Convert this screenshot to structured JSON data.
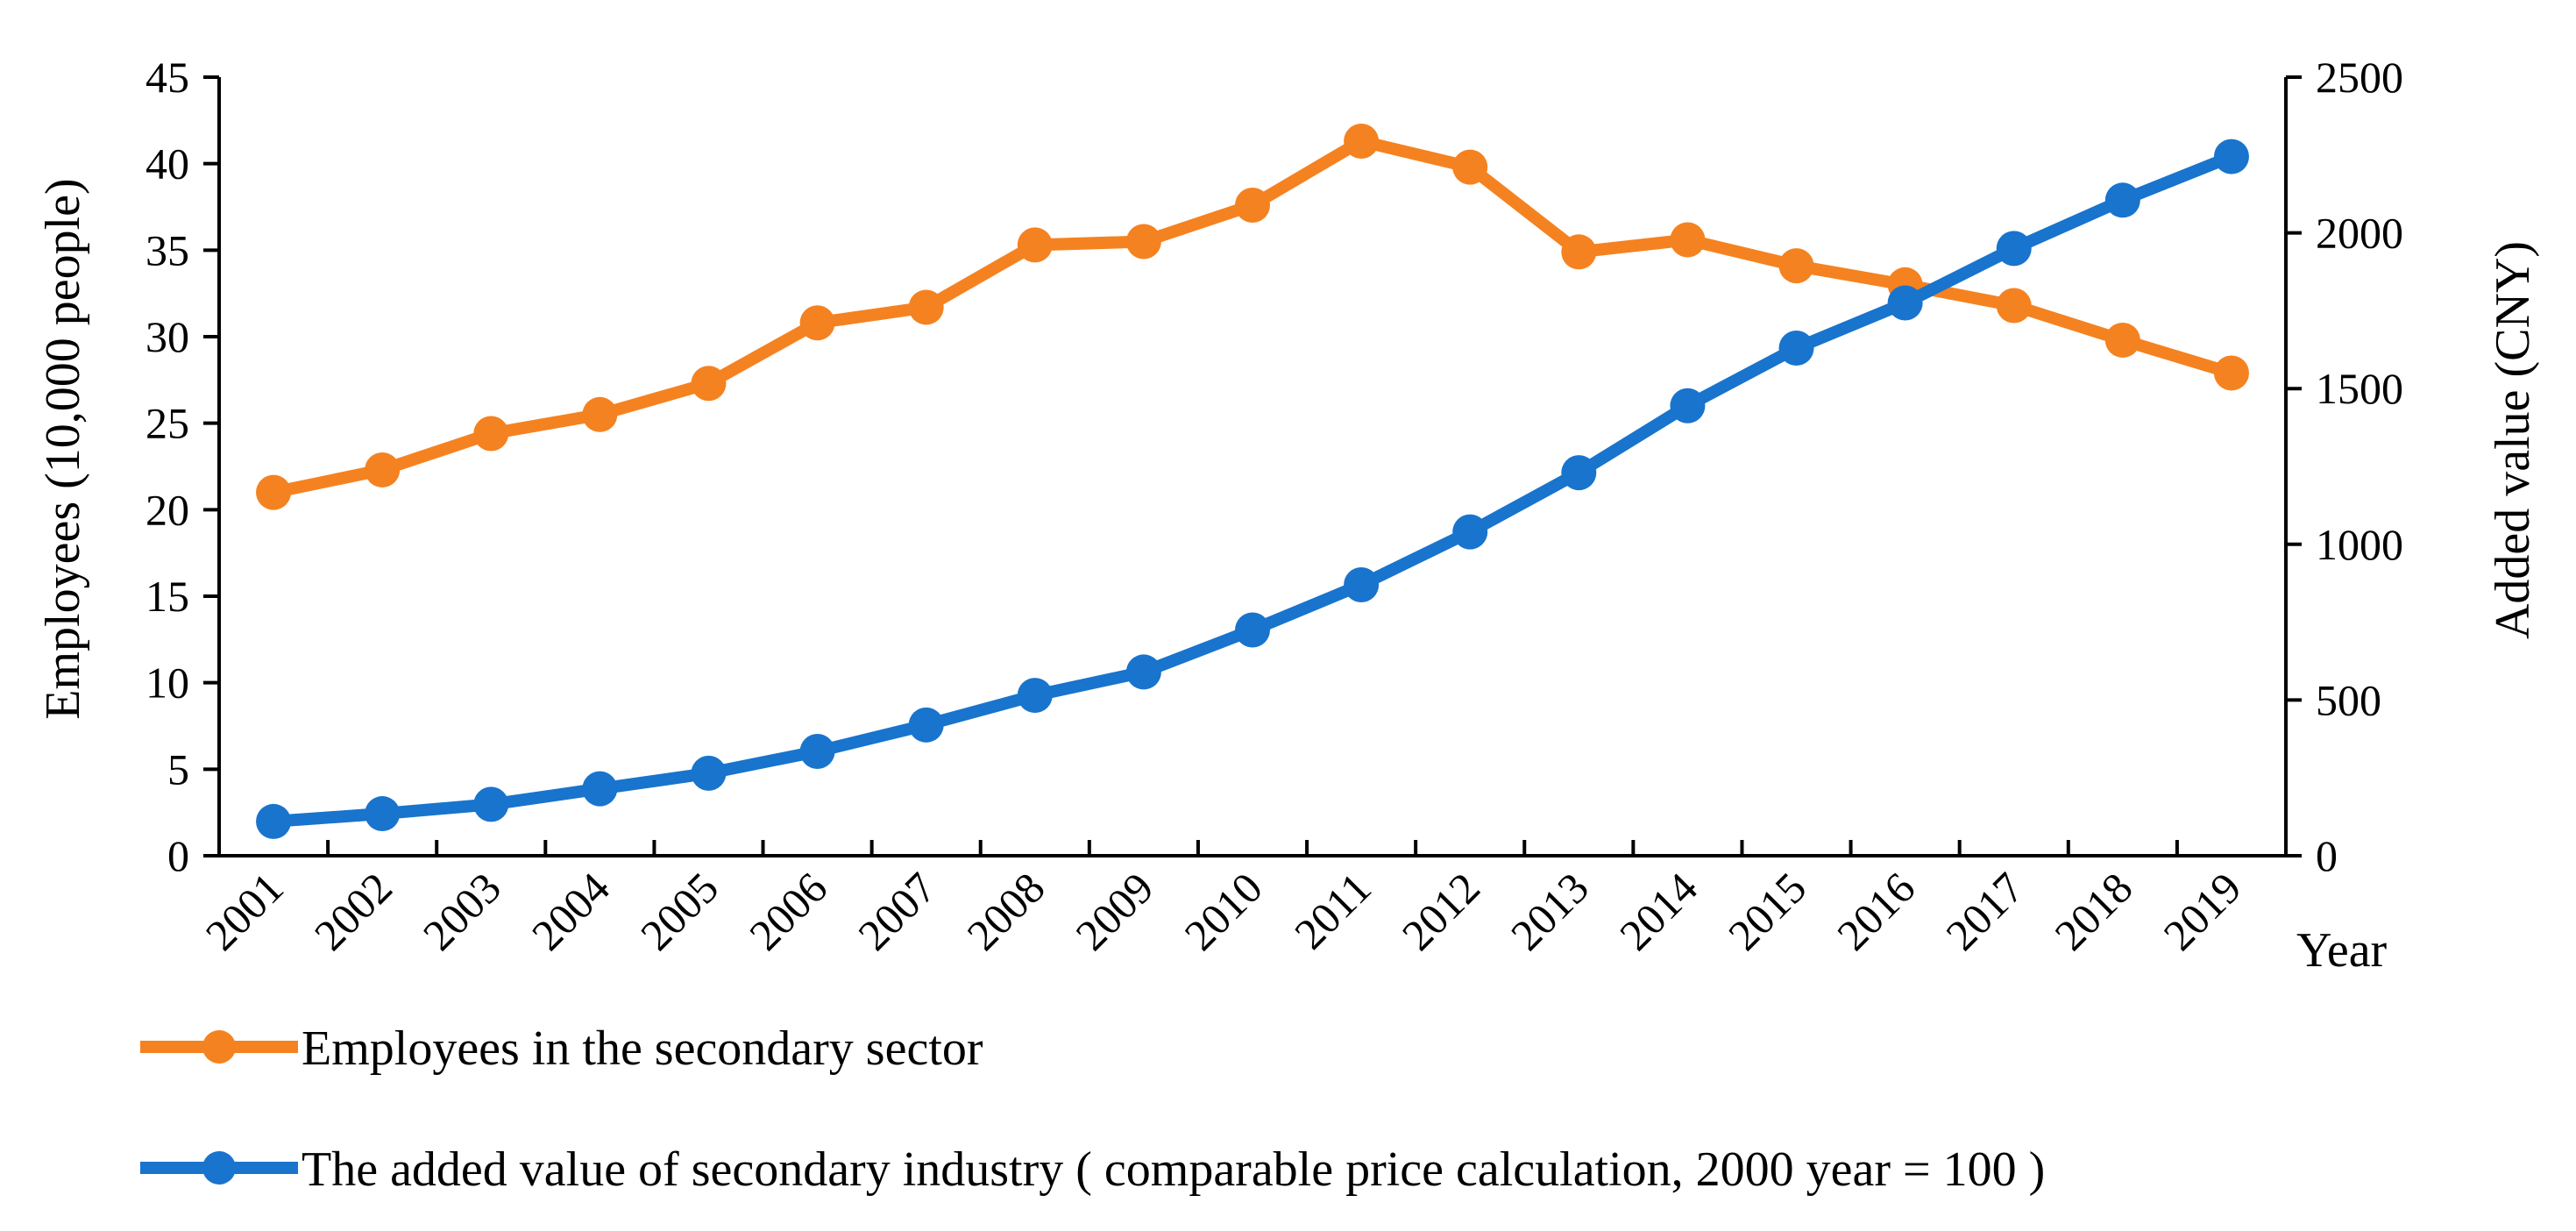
{
  "chart_data": {
    "type": "line",
    "categories": [
      "2001",
      "2002",
      "2003",
      "2004",
      "2005",
      "2006",
      "2007",
      "2008",
      "2009",
      "2010",
      "2011",
      "2012",
      "2013",
      "2014",
      "2015",
      "2016",
      "2017",
      "2018",
      "2019"
    ],
    "x_axis_extra_label": "Year",
    "y_left": {
      "label": "Employees (10,000 people)",
      "range": [
        0,
        45
      ],
      "ticks": [
        0,
        5,
        10,
        15,
        20,
        25,
        30,
        35,
        40,
        45
      ]
    },
    "y_right": {
      "label": "Added value (CNY)",
      "range": [
        0,
        2500
      ],
      "ticks": [
        0,
        500,
        1000,
        1500,
        2000,
        2500
      ]
    },
    "series": [
      {
        "name": "Employees in the secondary sector",
        "axis": "left",
        "color": "#F58220",
        "values": [
          21.0,
          22.3,
          24.4,
          25.5,
          27.3,
          30.8,
          31.7,
          35.3,
          35.5,
          37.6,
          41.3,
          39.8,
          34.9,
          35.6,
          34.1,
          33.0,
          31.8,
          29.8,
          27.9
        ]
      },
      {
        "name": "The added value of secondary industry ( comparable price calculation, 2000 year = 100 )",
        "axis": "right",
        "color": "#1874CD",
        "values": [
          110,
          135,
          165,
          215,
          265,
          335,
          420,
          515,
          590,
          725,
          870,
          1040,
          1230,
          1445,
          1630,
          1775,
          1950,
          2105,
          2245
        ]
      }
    ],
    "grid": false,
    "legend_position": "bottom-left"
  }
}
